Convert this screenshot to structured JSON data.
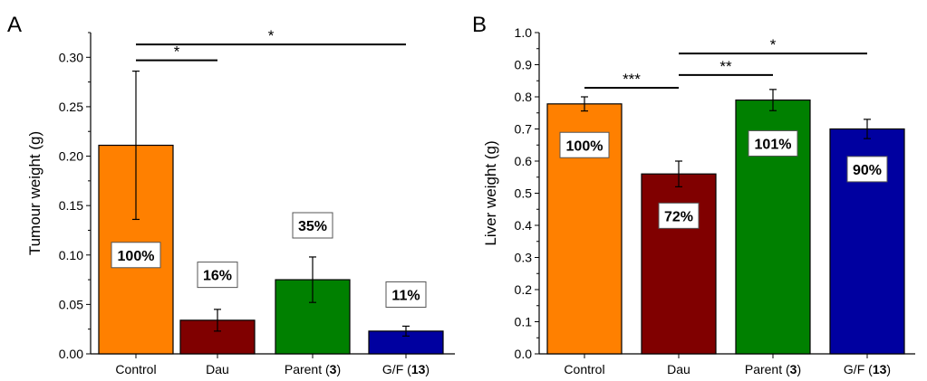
{
  "chart_data": [
    {
      "type": "bar",
      "panel": "A",
      "ylabel": "Tumour weight (g)",
      "ylim": [
        0,
        0.325
      ],
      "yticks": [
        "0.00",
        "0.05",
        "0.10",
        "0.15",
        "0.20",
        "0.25",
        "0.30"
      ],
      "categories": [
        {
          "name": "Control",
          "bold": ""
        },
        {
          "name": "Dau",
          "bold": ""
        },
        {
          "name": "Parent (",
          "bold": "3",
          "suffix": ")"
        },
        {
          "name": "G/F (",
          "bold": "13",
          "suffix": ")"
        }
      ],
      "values": [
        0.211,
        0.034,
        0.075,
        0.023
      ],
      "errors": [
        0.075,
        0.011,
        0.023,
        0.005
      ],
      "colors": [
        "#FF8000",
        "#800000",
        "#008000",
        "#0000A0"
      ],
      "labels": [
        "100%",
        "16%",
        "35%",
        "11%"
      ],
      "label_y": [
        0.1,
        0.08,
        0.13,
        0.06
      ],
      "significance": [
        {
          "from": 0,
          "to": 1,
          "y": 0.297,
          "text": "*"
        },
        {
          "from": 0,
          "to": 3,
          "y": 0.313,
          "text": "*"
        }
      ]
    },
    {
      "type": "bar",
      "panel": "B",
      "ylabel": "Liver weight (g)",
      "ylim": [
        0,
        1.0
      ],
      "yticks": [
        "0.0",
        "0.1",
        "0.2",
        "0.3",
        "0.4",
        "0.5",
        "0.6",
        "0.7",
        "0.8",
        "0.9",
        "1.0"
      ],
      "categories": [
        {
          "name": "Control",
          "bold": ""
        },
        {
          "name": "Dau",
          "bold": ""
        },
        {
          "name": "Parent (",
          "bold": "3",
          "suffix": ")"
        },
        {
          "name": "G/F (",
          "bold": "13",
          "suffix": ")"
        }
      ],
      "values": [
        0.778,
        0.56,
        0.79,
        0.7
      ],
      "errors": [
        0.022,
        0.04,
        0.033,
        0.03
      ],
      "colors": [
        "#FF8000",
        "#800000",
        "#008000",
        "#0000A0"
      ],
      "labels": [
        "100%",
        "72%",
        "101%",
        "90%"
      ],
      "label_y": [
        0.65,
        0.43,
        0.655,
        0.575
      ],
      "significance": [
        {
          "from": 0,
          "to": 1,
          "y": 0.828,
          "text": "***"
        },
        {
          "from": 1,
          "to": 2,
          "y": 0.868,
          "text": "**"
        },
        {
          "from": 1,
          "to": 3,
          "y": 0.935,
          "text": "*"
        }
      ]
    }
  ]
}
